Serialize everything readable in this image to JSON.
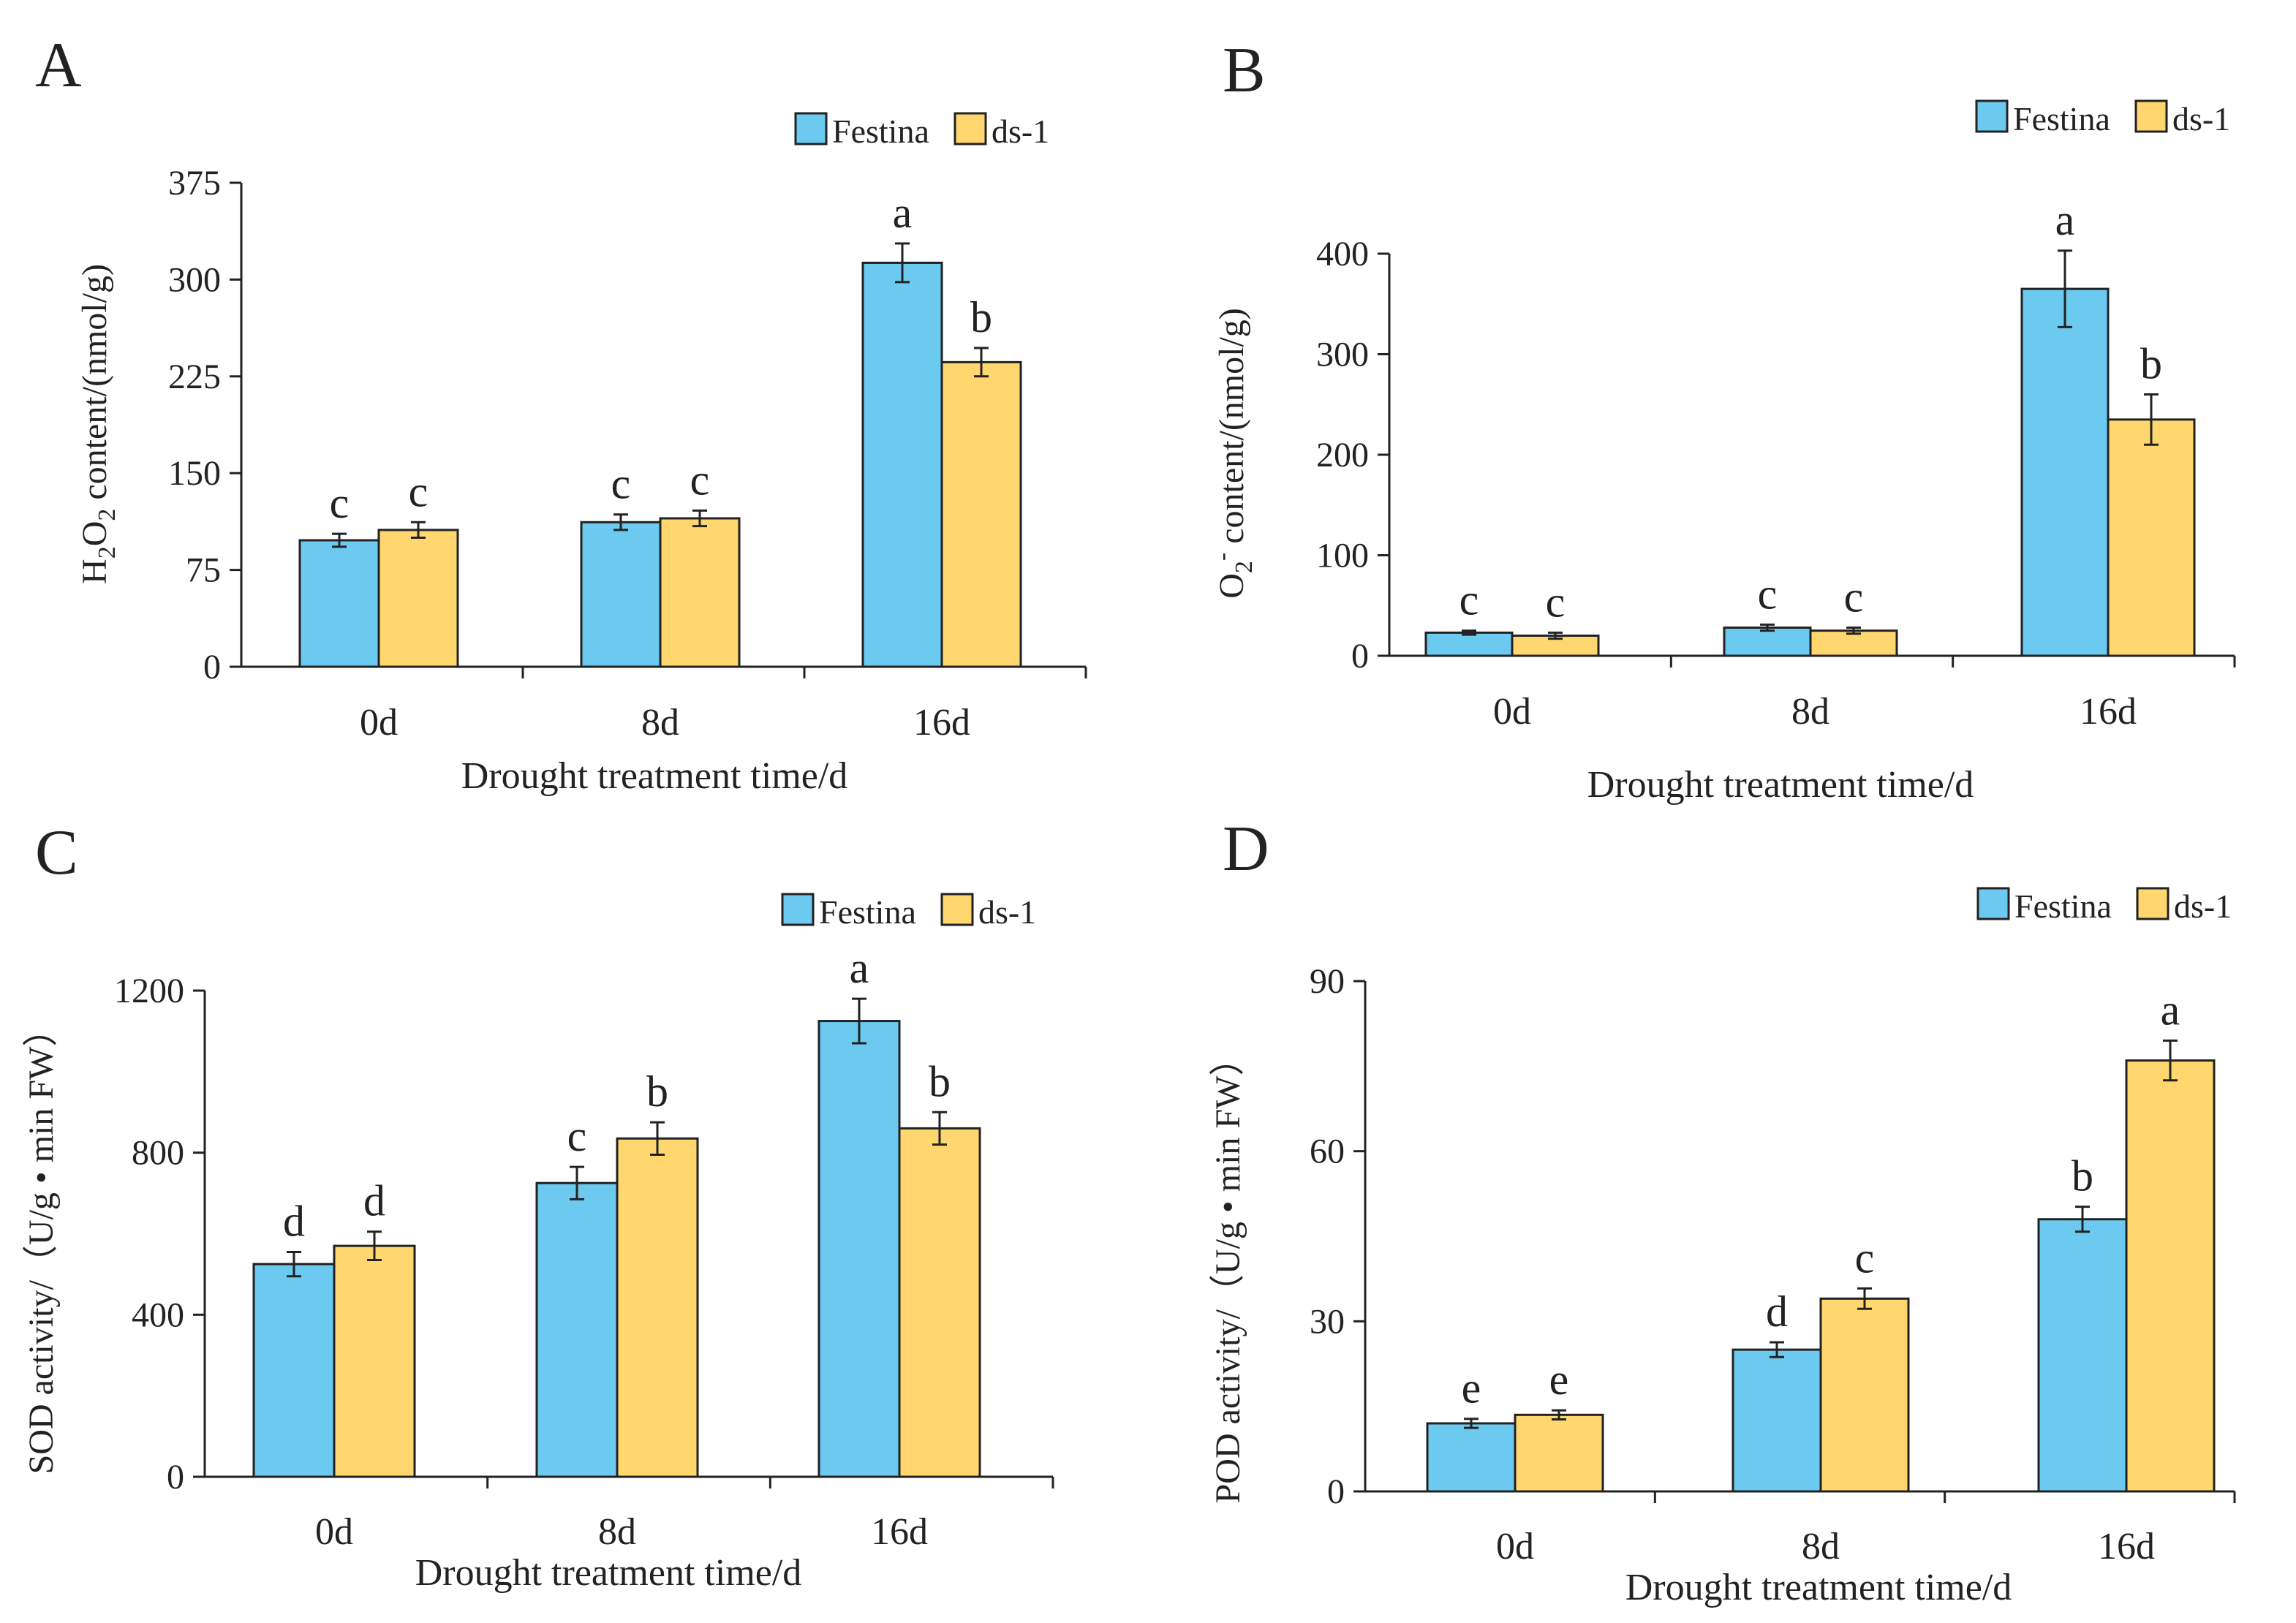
{
  "colors": {
    "festina": "#6cc9ef",
    "ds1": "#ffd76e",
    "axis": "#222222",
    "errorbar": "#222222"
  },
  "chart_data": [
    {
      "type": "bar",
      "panel": "A",
      "ylabel": "H2O2 content/(nmol/g)",
      "ylabel_parts": {
        "pre": "H",
        "sub1": "2",
        "mid": "O",
        "sub2": "2",
        "post": " content/(nmol/g)"
      },
      "xlabel": "Drought treatment time/d",
      "categories": [
        "0d",
        "8d",
        "16d"
      ],
      "ylim": [
        0,
        375
      ],
      "yticks": [
        0,
        75,
        150,
        225,
        300,
        375
      ],
      "legend": "top-right",
      "series": [
        {
          "name": "Festina",
          "values": [
            98,
            112,
            313
          ],
          "errors": [
            5,
            6,
            15
          ],
          "letters": [
            "c",
            "c",
            "a"
          ]
        },
        {
          "name": "ds-1",
          "values": [
            106,
            115,
            236
          ],
          "errors": [
            6,
            6,
            11
          ],
          "letters": [
            "c",
            "c",
            "b"
          ]
        }
      ]
    },
    {
      "type": "bar",
      "panel": "B",
      "ylabel": "O2- content/(nmol/g)",
      "ylabel_parts": {
        "pre": "O",
        "sub": "2",
        "sup": "-",
        "post": " content/(nmol/g)"
      },
      "xlabel": "Drought treatment time/d",
      "categories": [
        "0d",
        "8d",
        "16d"
      ],
      "ylim": [
        0,
        400
      ],
      "yticks": [
        0,
        100,
        200,
        300,
        400
      ],
      "legend": "top-right",
      "series": [
        {
          "name": "Festina",
          "values": [
            23,
            28,
            365
          ],
          "errors": [
            2,
            3,
            38
          ],
          "letters": [
            "c",
            "c",
            "a"
          ]
        },
        {
          "name": "ds-1",
          "values": [
            20,
            25,
            235
          ],
          "errors": [
            3,
            3,
            25
          ],
          "letters": [
            "c",
            "c",
            "b"
          ]
        }
      ]
    },
    {
      "type": "bar",
      "panel": "C",
      "ylabel": "SOD activity/（U/g • min FW）",
      "xlabel": "Drought treatment time/d",
      "categories": [
        "0d",
        "8d",
        "16d"
      ],
      "ylim": [
        0,
        1200
      ],
      "yticks": [
        0,
        400,
        800,
        1200
      ],
      "legend": "top-right",
      "series": [
        {
          "name": "Festina",
          "values": [
            525,
            725,
            1125
          ],
          "errors": [
            30,
            40,
            55
          ],
          "letters": [
            "d",
            "c",
            "a"
          ]
        },
        {
          "name": "ds-1",
          "values": [
            570,
            835,
            860
          ],
          "errors": [
            35,
            40,
            40
          ],
          "letters": [
            "d",
            "b",
            "b"
          ]
        }
      ]
    },
    {
      "type": "bar",
      "panel": "D",
      "ylabel": "POD activity/（U/g • min FW）",
      "xlabel": "Drought treatment time/d",
      "categories": [
        "0d",
        "8d",
        "16d"
      ],
      "ylim": [
        0,
        90
      ],
      "yticks": [
        0,
        30,
        60,
        90
      ],
      "legend": "top-right",
      "series": [
        {
          "name": "Festina",
          "values": [
            12,
            25,
            48
          ],
          "errors": [
            0.8,
            1.3,
            2.2
          ],
          "letters": [
            "e",
            "d",
            "b"
          ]
        },
        {
          "name": "ds-1",
          "values": [
            13.5,
            34,
            76
          ],
          "errors": [
            0.8,
            1.8,
            3.5
          ],
          "letters": [
            "e",
            "c",
            "a"
          ]
        }
      ]
    }
  ]
}
